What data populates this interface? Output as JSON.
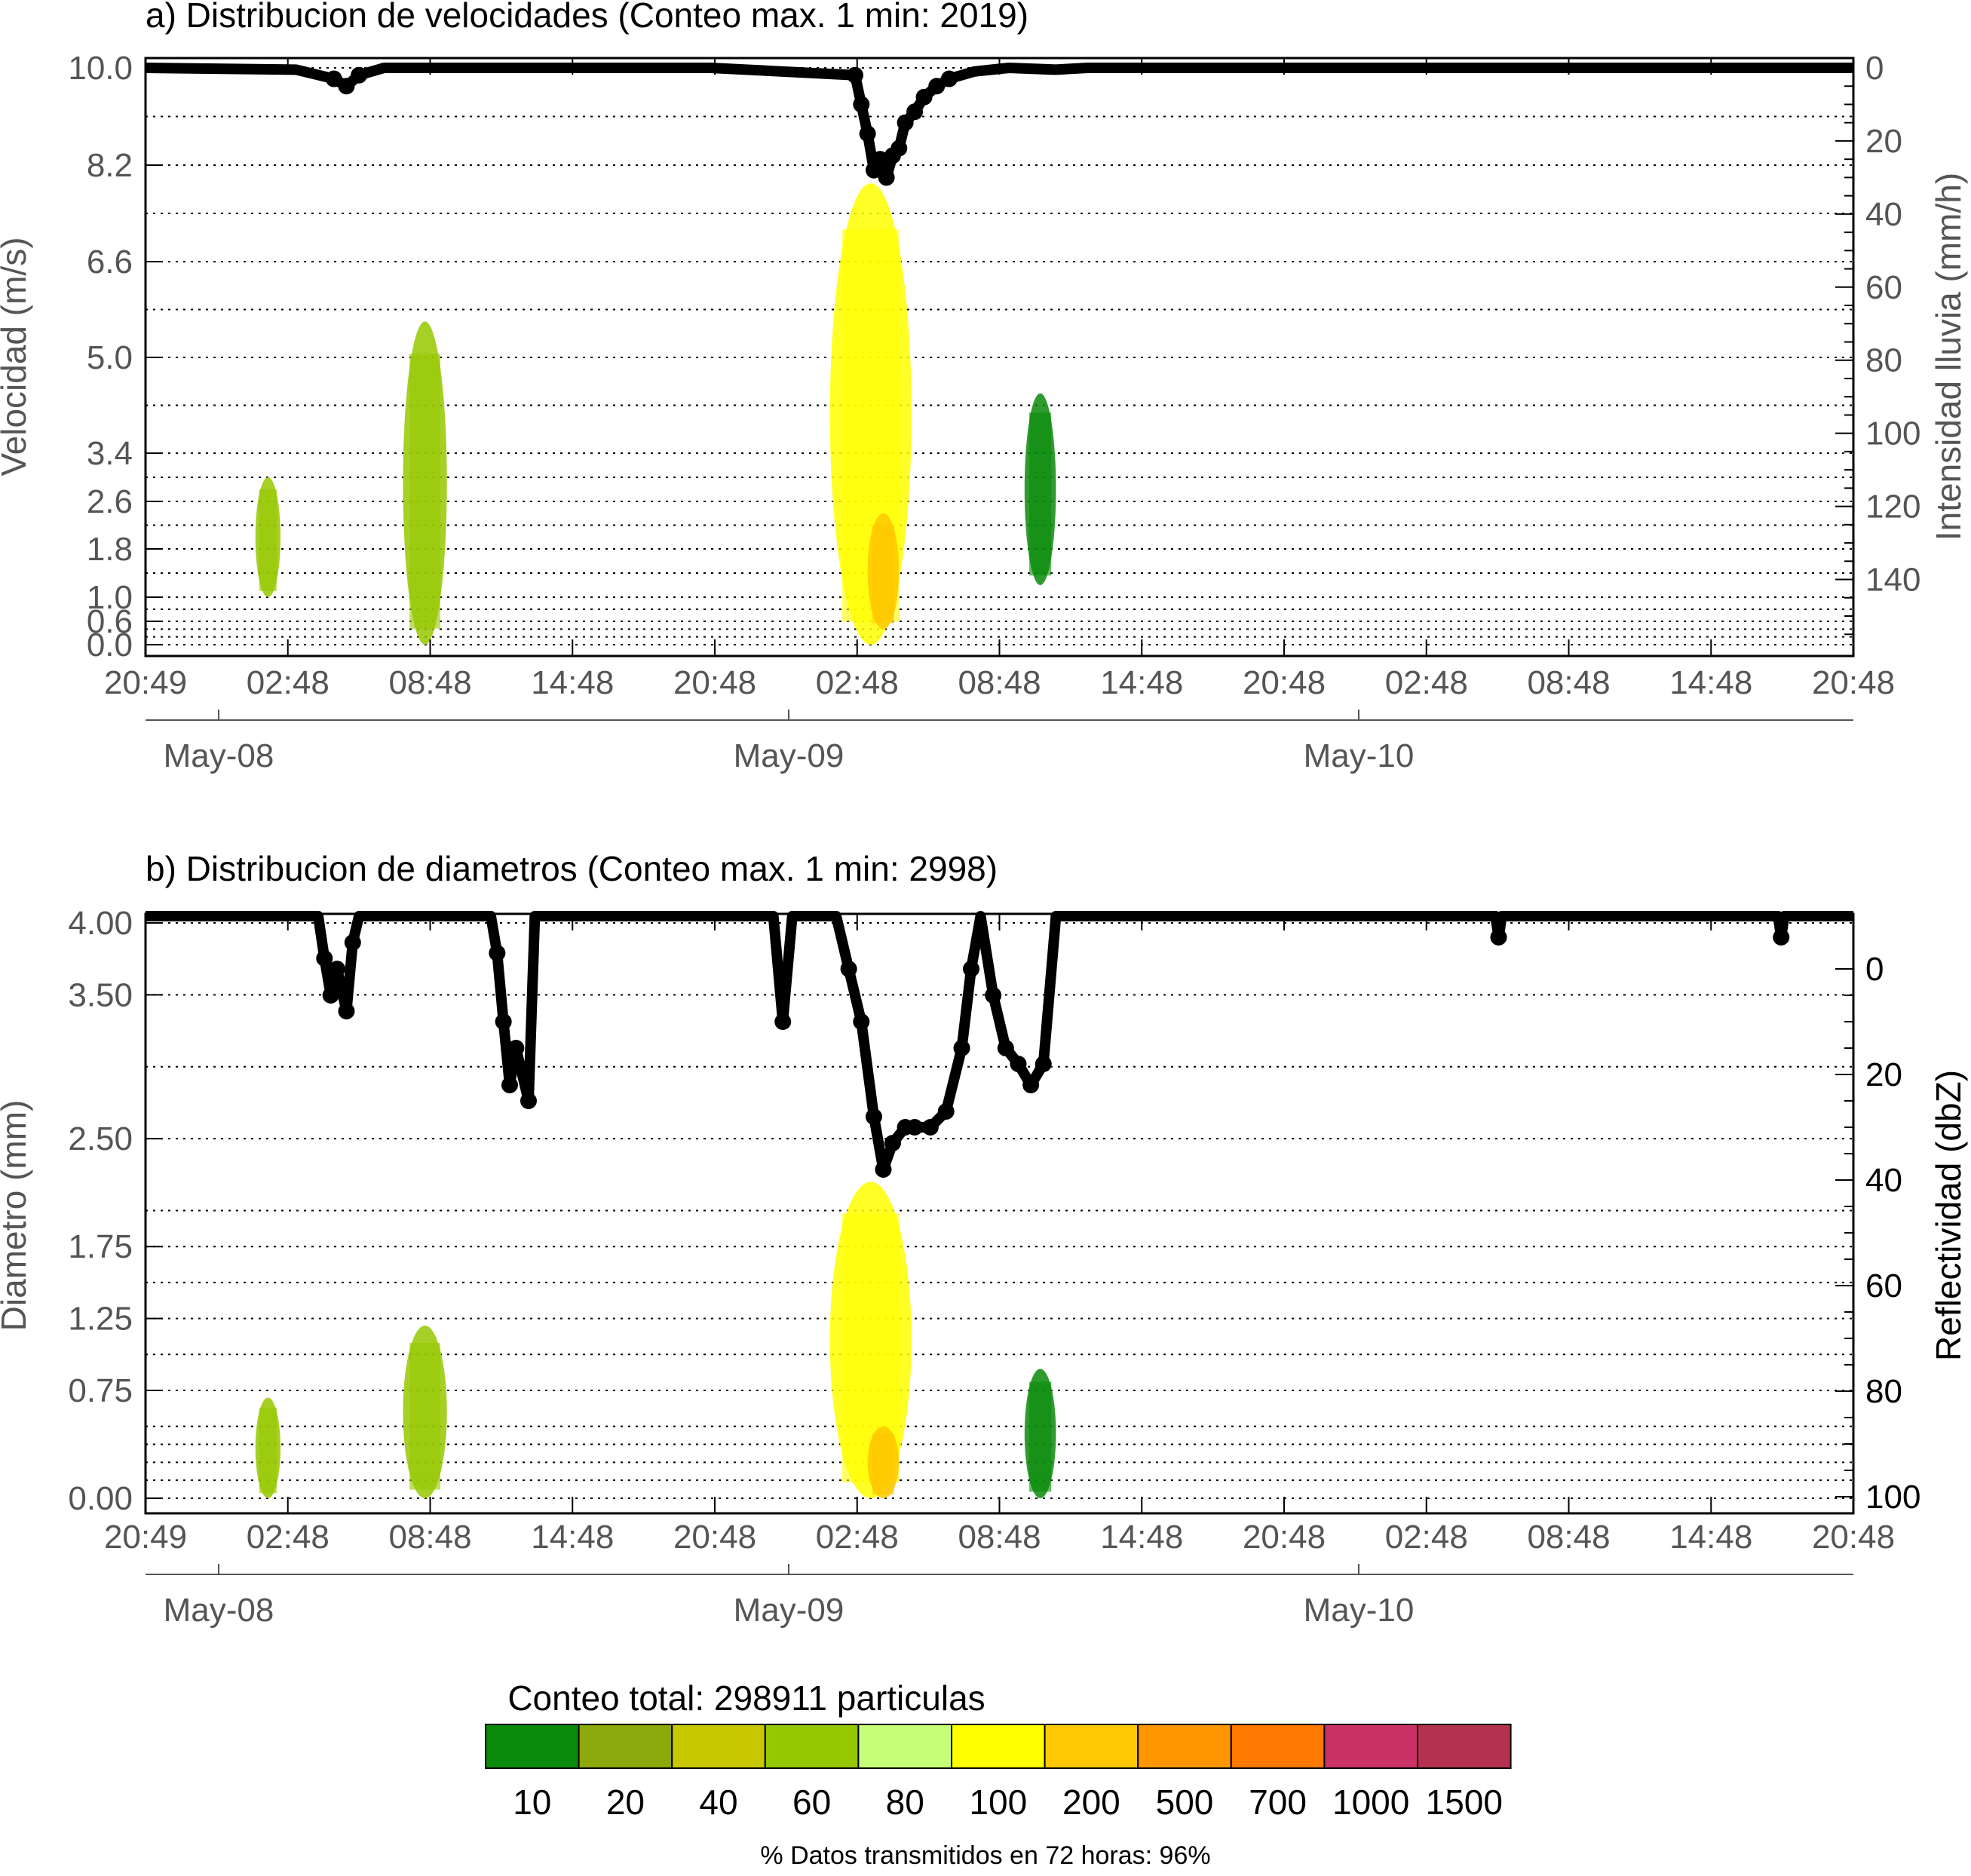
{
  "chart_data": [
    {
      "type": "heatmap",
      "title": "a) Distribucion de velocidades (Conteo max. 1 min: 2019)",
      "ylabel": "Velocidad (m/s)",
      "ylabel_right": "Intensidad lluvia (mm/h)",
      "x_tick_labels": [
        "20:49",
        "02:48",
        "08:48",
        "14:48",
        "20:48",
        "02:48",
        "08:48",
        "14:48",
        "20:48",
        "02:48",
        "08:48",
        "14:48",
        "20:48"
      ],
      "date_labels": [
        "May-08",
        "May-09",
        "May-10"
      ],
      "y_tick_labels": [
        "10.0",
        "8.2",
        "6.6",
        "5.0",
        "3.4",
        "2.6",
        "1.8",
        "1.0",
        "0.6",
        "0.0"
      ],
      "y_ticks": [
        10.0,
        8.2,
        6.6,
        5.0,
        3.4,
        2.6,
        1.8,
        1.0,
        0.6,
        0.0
      ],
      "y_gridlines": [
        10.0,
        9.1,
        8.2,
        7.4,
        6.6,
        5.8,
        5.0,
        4.2,
        3.4,
        3.0,
        2.6,
        2.2,
        1.8,
        1.4,
        1.0,
        0.8,
        0.6,
        0.4,
        0.2,
        0.0
      ],
      "y2_tick_labels": [
        "0",
        "20",
        "40",
        "60",
        "80",
        "100",
        "120",
        "140"
      ],
      "y2_ticks": [
        0,
        20,
        40,
        60,
        80,
        100,
        120,
        140
      ],
      "y2lim": [
        0,
        150
      ],
      "grid": true,
      "rain_intensity_mm_h": [
        [
          0.0,
          0
        ],
        [
          4.8,
          0.5
        ],
        [
          6.0,
          3
        ],
        [
          6.4,
          5
        ],
        [
          6.8,
          2
        ],
        [
          7.6,
          0
        ],
        [
          18.0,
          0
        ],
        [
          22.6,
          2
        ],
        [
          22.8,
          10
        ],
        [
          23.0,
          18
        ],
        [
          23.2,
          28
        ],
        [
          23.4,
          25
        ],
        [
          23.6,
          30
        ],
        [
          23.8,
          24
        ],
        [
          24.0,
          22
        ],
        [
          24.2,
          15
        ],
        [
          24.5,
          12
        ],
        [
          24.8,
          8
        ],
        [
          25.2,
          5
        ],
        [
          25.6,
          3
        ],
        [
          26.4,
          1
        ],
        [
          27.5,
          0
        ],
        [
          29.0,
          0.5
        ],
        [
          30.0,
          0
        ],
        [
          52.0,
          0
        ],
        [
          54.4,
          0
        ]
      ],
      "events": [
        {
          "t0": 3.5,
          "t1": 4.3,
          "v0": 1.0,
          "v1": 3.0,
          "level": "60"
        },
        {
          "t0": 8.2,
          "t1": 9.6,
          "v0": 0.0,
          "v1": 5.6,
          "level": "60"
        },
        {
          "t0": 21.8,
          "t1": 24.4,
          "v0": 0.0,
          "v1": 7.9,
          "level": "100"
        },
        {
          "t0": 23.0,
          "t1": 24.0,
          "v0": 0.4,
          "v1": 2.4,
          "level": "200"
        },
        {
          "t0": 28.0,
          "t1": 29.0,
          "v0": 1.2,
          "v1": 4.4,
          "level": "10"
        }
      ]
    },
    {
      "type": "heatmap",
      "title": "b) Distribucion de diametros (Conteo max. 1 min: 2998)",
      "ylabel": "Diametro (mm)",
      "ylabel_right": "Reflectividad (dbZ)",
      "x_tick_labels": [
        "20:49",
        "02:48",
        "08:48",
        "14:48",
        "20:48",
        "02:48",
        "08:48",
        "14:48",
        "20:48",
        "02:48",
        "08:48",
        "14:48",
        "20:48"
      ],
      "date_labels": [
        "May-08",
        "May-09",
        "May-10"
      ],
      "y_tick_labels": [
        "4.00",
        "3.50",
        "2.50",
        "1.75",
        "1.25",
        "0.75",
        "0.00"
      ],
      "y_ticks": [
        4.0,
        3.5,
        2.5,
        1.75,
        1.25,
        0.75,
        0.0
      ],
      "y_gridlines": [
        4.0,
        3.5,
        3.0,
        2.5,
        2.0,
        1.75,
        1.5,
        1.25,
        1.0,
        0.75,
        0.5,
        0.375,
        0.25,
        0.125,
        0.0
      ],
      "y2_tick_labels": [
        "0",
        "20",
        "40",
        "60",
        "80",
        "100"
      ],
      "y2_ticks": [
        0,
        20,
        40,
        60,
        80,
        100
      ],
      "y2lim": [
        -10,
        100
      ],
      "grid": true,
      "reflectivity_dbz": [
        [
          0.0,
          -10
        ],
        [
          5.5,
          -10
        ],
        [
          5.7,
          -2
        ],
        [
          5.9,
          5
        ],
        [
          6.1,
          0
        ],
        [
          6.4,
          8
        ],
        [
          6.6,
          -5
        ],
        [
          6.8,
          -10
        ],
        [
          11.0,
          -10
        ],
        [
          11.2,
          -3
        ],
        [
          11.4,
          10
        ],
        [
          11.6,
          22
        ],
        [
          11.8,
          15
        ],
        [
          12.2,
          25
        ],
        [
          12.4,
          -10
        ],
        [
          20.0,
          -10
        ],
        [
          20.3,
          10
        ],
        [
          20.6,
          -10
        ],
        [
          22.0,
          -10
        ],
        [
          22.4,
          0
        ],
        [
          22.8,
          10
        ],
        [
          23.2,
          28
        ],
        [
          23.5,
          38
        ],
        [
          23.8,
          33
        ],
        [
          24.2,
          30
        ],
        [
          24.5,
          30
        ],
        [
          25.0,
          30
        ],
        [
          25.5,
          27
        ],
        [
          26.0,
          15
        ],
        [
          26.3,
          0
        ],
        [
          26.6,
          -10
        ],
        [
          27.0,
          5
        ],
        [
          27.4,
          15
        ],
        [
          27.8,
          18
        ],
        [
          28.2,
          22
        ],
        [
          28.6,
          18
        ],
        [
          29.0,
          -10
        ],
        [
          43.0,
          -10
        ],
        [
          43.1,
          -6
        ],
        [
          43.2,
          -10
        ],
        [
          52.0,
          -10
        ],
        [
          52.1,
          -6
        ],
        [
          52.2,
          -10
        ],
        [
          54.4,
          -10
        ]
      ],
      "events": [
        {
          "t0": 3.5,
          "t1": 4.3,
          "d0": 0.0,
          "d1": 0.7,
          "level": "60"
        },
        {
          "t0": 8.2,
          "t1": 9.6,
          "d0": 0.0,
          "d1": 1.2,
          "level": "60"
        },
        {
          "t0": 21.8,
          "t1": 24.4,
          "d0": 0.0,
          "d1": 2.2,
          "level": "100"
        },
        {
          "t0": 23.0,
          "t1": 24.0,
          "d0": 0.0,
          "d1": 0.5,
          "level": "200"
        },
        {
          "t0": 28.0,
          "t1": 29.0,
          "d0": 0.0,
          "d1": 0.9,
          "level": "10"
        }
      ]
    }
  ],
  "colorbar": {
    "title": "Conteo total: 298911 particulas",
    "labels": [
      "10",
      "20",
      "40",
      "60",
      "80",
      "100",
      "200",
      "500",
      "700",
      "1000",
      "1500"
    ],
    "colors": [
      "#0a8a0a",
      "#8ca80a",
      "#c8c800",
      "#96c800",
      "#c8ff78",
      "#ffff00",
      "#ffc800",
      "#ff9600",
      "#ff7800",
      "#c83264",
      "#b43250"
    ]
  },
  "footer": "% Datos transmitidos en 72 horas: 96%"
}
